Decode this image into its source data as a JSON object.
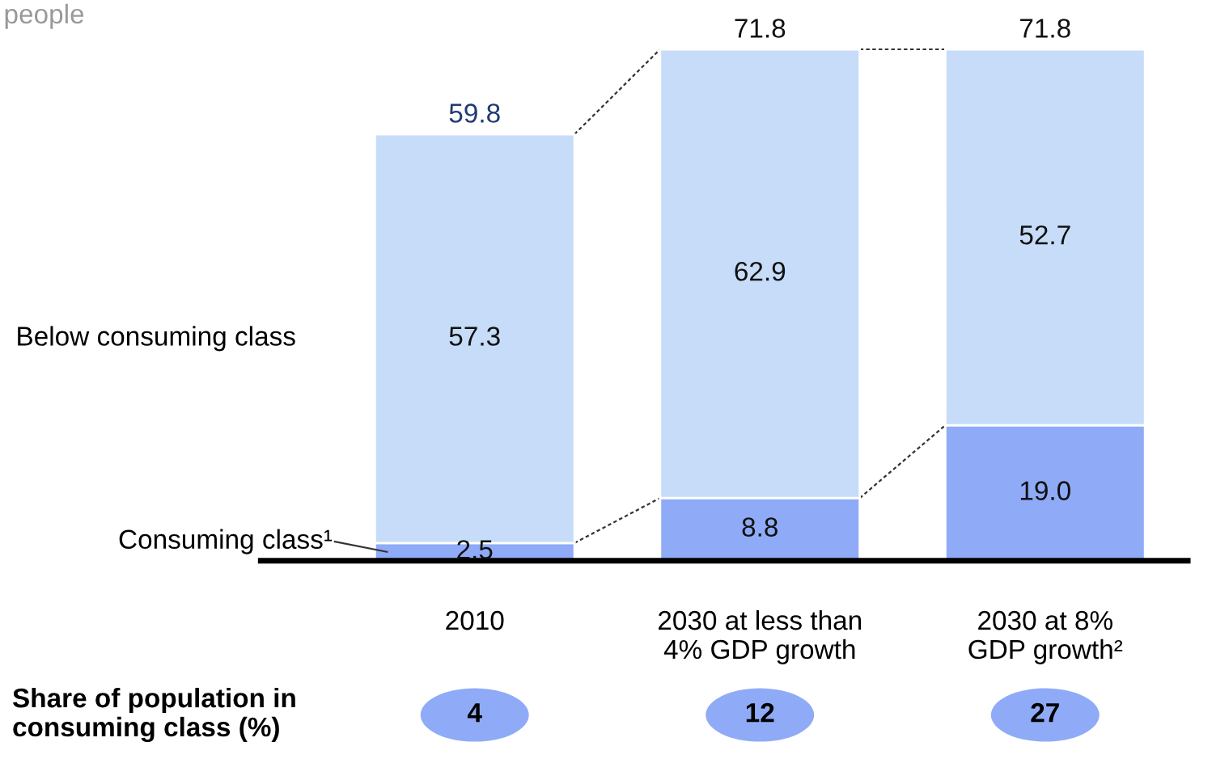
{
  "chart_data": {
    "type": "bar",
    "stacked": true,
    "subtitle": "people",
    "categories": [
      "2010",
      "2030 at less than\n4% GDP growth",
      "2030 at 8%\nGDP growth²"
    ],
    "series": [
      {
        "name": "Consuming class¹",
        "color": "#8fabf7",
        "values": [
          2.5,
          8.8,
          19.0
        ],
        "value_labels": [
          "2.5",
          "8.8",
          "19.0"
        ]
      },
      {
        "name": "Below consuming class",
        "color": "#c6dcf9",
        "values": [
          57.3,
          62.9,
          52.7
        ],
        "value_labels": [
          "57.3",
          "62.9",
          "52.7"
        ]
      }
    ],
    "totals": [
      "59.8",
      "71.8",
      "71.8"
    ],
    "legend": false,
    "grid": false,
    "annotations": [
      "Share of population in\nconsuming class (%)",
      "4",
      "12",
      "27"
    ]
  }
}
